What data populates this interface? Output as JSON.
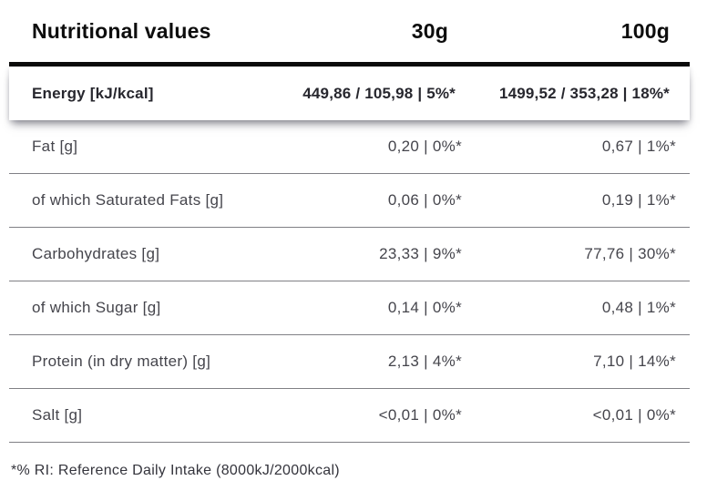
{
  "table": {
    "header": {
      "title": "Nutritional values",
      "col_30g": "30g",
      "col_100g": "100g"
    },
    "energy_row": {
      "label": "Energy [kJ/kcal]",
      "value_30g": "449,86 / 105,98 | 5%*",
      "value_100g": "1499,52 / 353,28 | 18%*"
    },
    "rows": [
      {
        "label": "Fat [g]",
        "value_30g": "0,20 | 0%*",
        "value_100g": "0,67 | 1%*"
      },
      {
        "label": "of which Saturated Fats [g]",
        "value_30g": "0,06 | 0%*",
        "value_100g": "0,19 | 1%*"
      },
      {
        "label": "Carbohydrates [g]",
        "value_30g": "23,33 | 9%*",
        "value_100g": "77,76 | 30%*"
      },
      {
        "label": "of which Sugar [g]",
        "value_30g": "0,14 | 0%*",
        "value_100g": "0,48 | 1%*"
      },
      {
        "label": "Protein (in dry matter) [g]",
        "value_30g": "2,13 | 4%*",
        "value_100g": "7,10 | 14%*"
      },
      {
        "label": "Salt [g]",
        "value_30g": "<0,01 | 0%*",
        "value_100g": "<0,01 | 0%*"
      }
    ],
    "footnote": "*% RI: Reference Daily Intake (8000kJ/2000kcal)"
  },
  "colors": {
    "header_text": "#0d0d0d",
    "row_text": "#45454c",
    "divider": "#808085",
    "thick_bar": "#0b0b0b",
    "background": "#ffffff"
  }
}
